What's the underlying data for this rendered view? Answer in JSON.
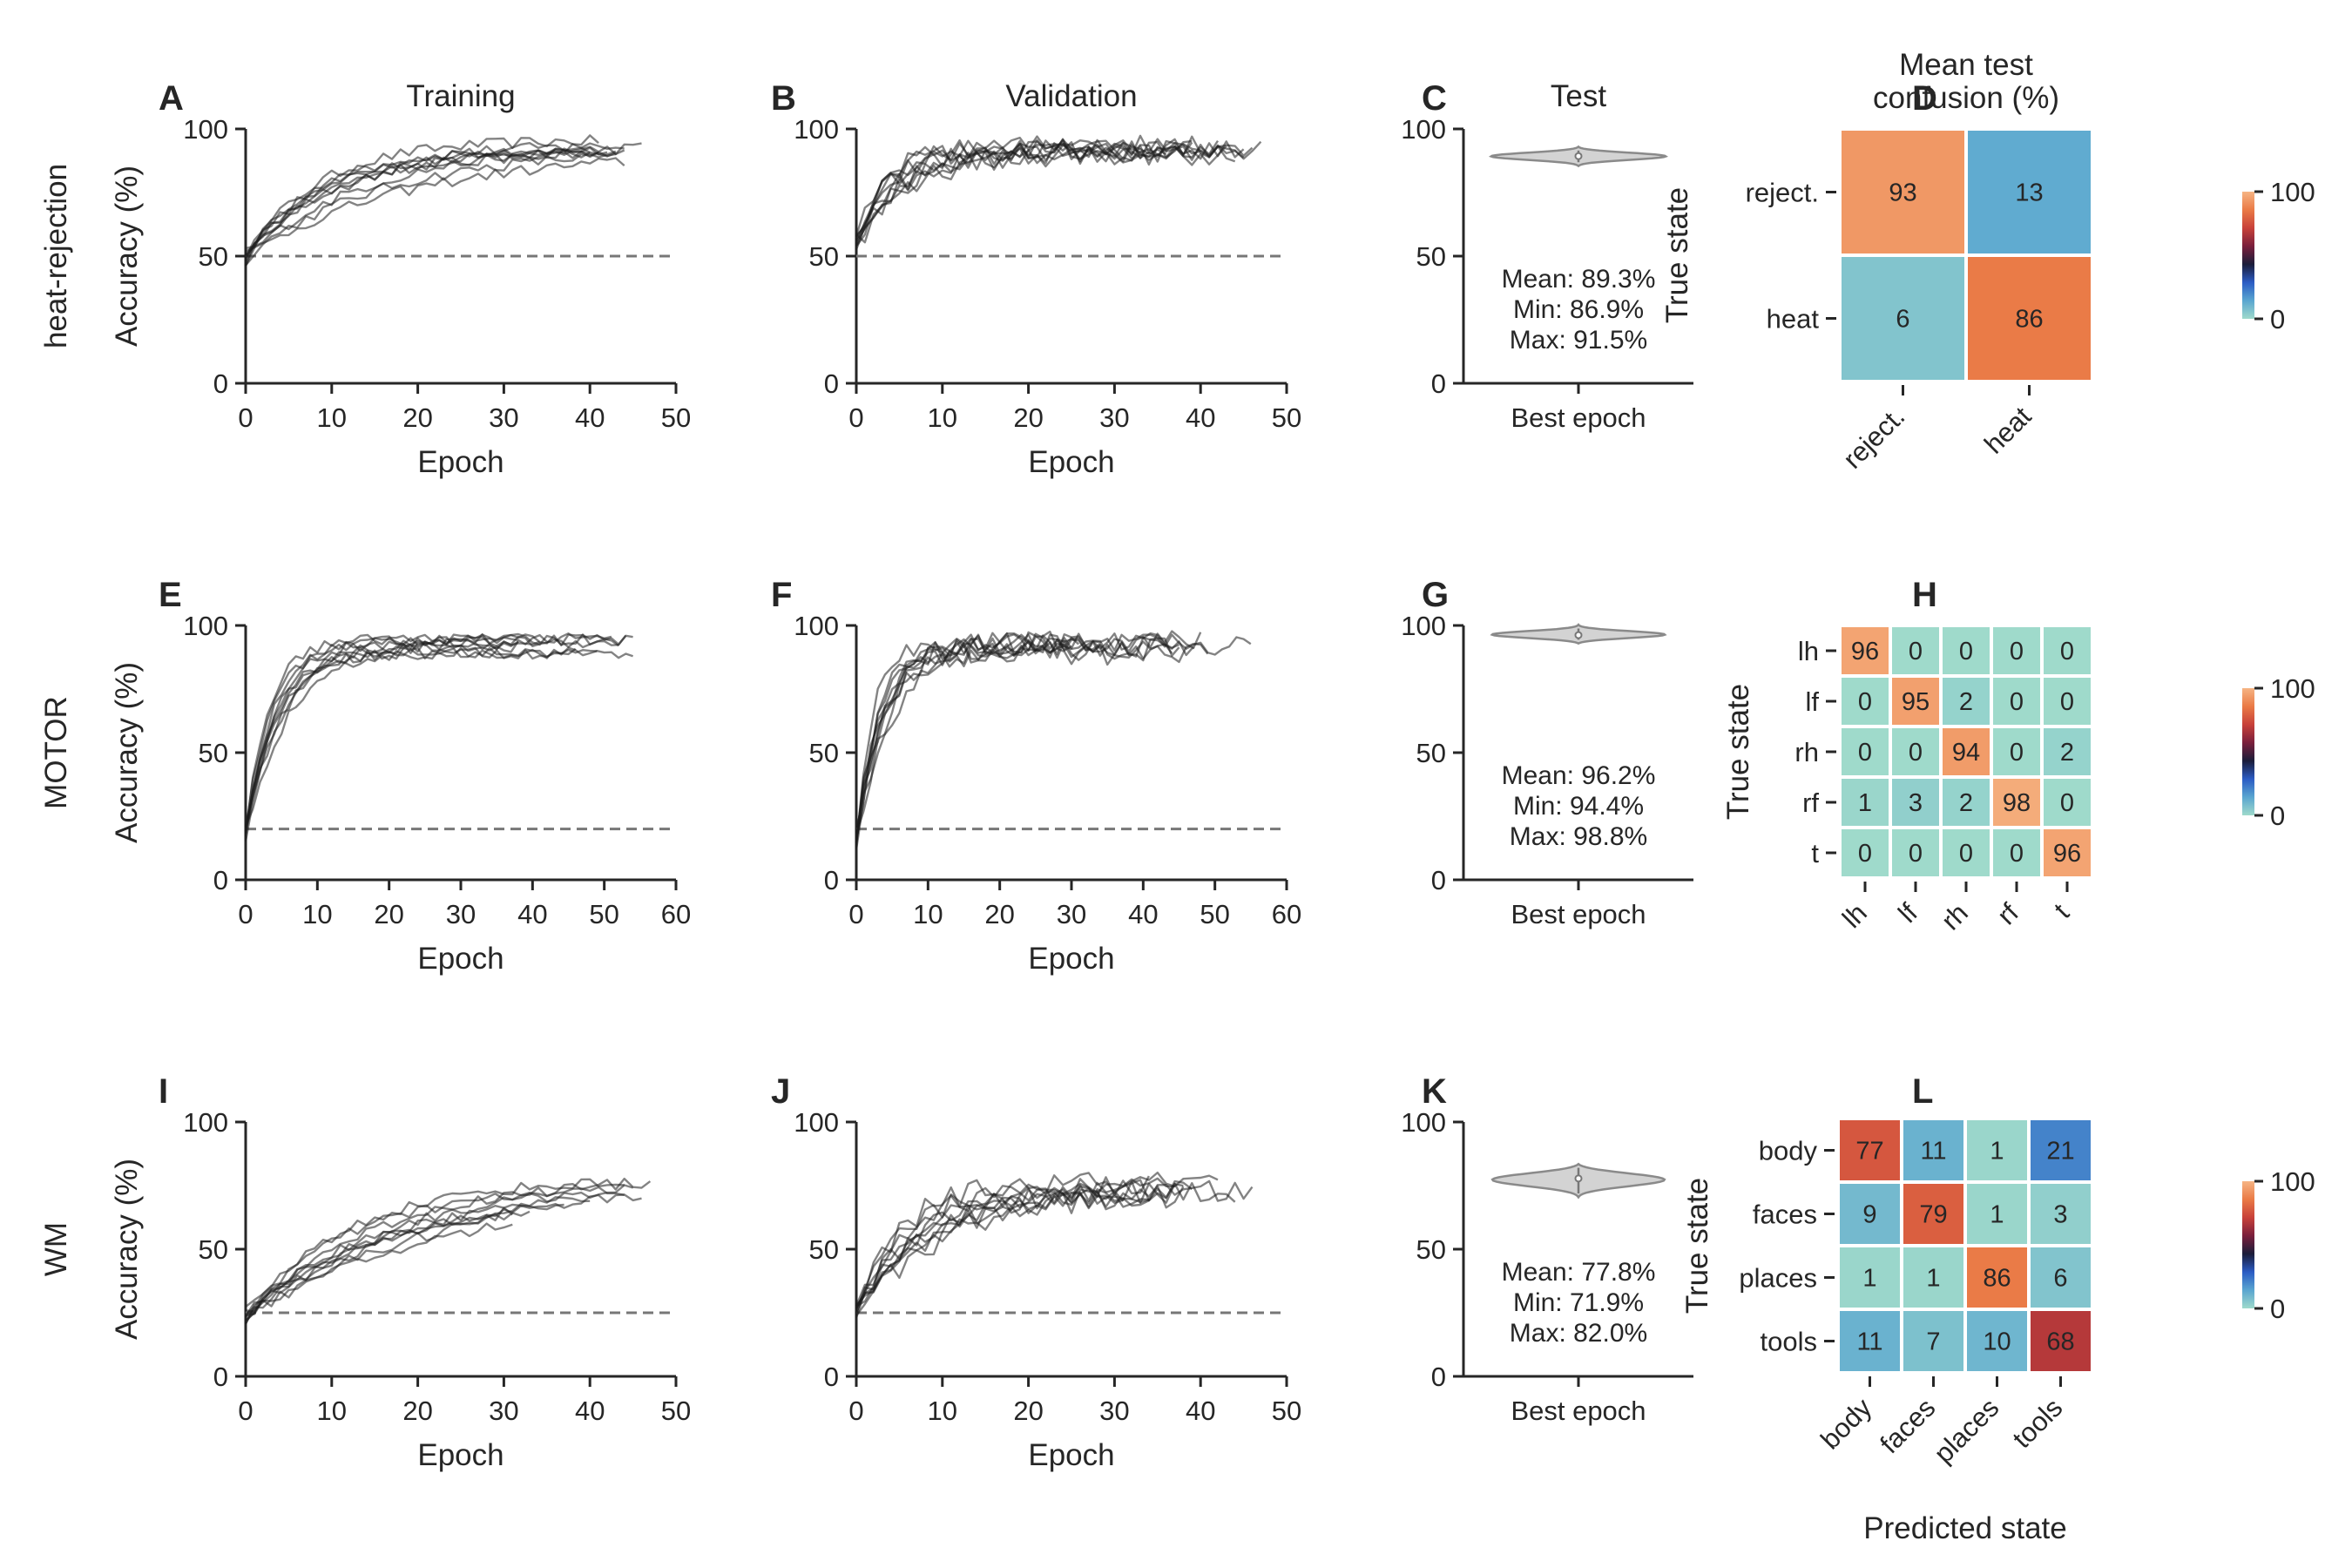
{
  "figure": {
    "column_titles": [
      "Training",
      "Validation",
      "Test",
      "Mean test\nconfusion (%)"
    ],
    "row_labels": [
      "heat-rejection",
      "MOTOR",
      "WM"
    ],
    "colorbar_ticks": [
      "100",
      "0"
    ],
    "colors": {
      "cmap": [
        "#9fdacb",
        "#5aa6d0",
        "#2b5cc4",
        "#1b1d3a",
        "#7a1f3c",
        "#c8413a",
        "#ea7a46",
        "#f6b483"
      ],
      "line": "#1e1e1e",
      "chance": "#777777",
      "violin_fill": "#d3d3d3"
    }
  },
  "chart_data": [
    {
      "panel": "A",
      "type": "line",
      "title": "Training",
      "row": "heat-rejection",
      "xlabel": "Epoch",
      "ylabel": "Accuracy (%)",
      "xlim": [
        0,
        50
      ],
      "ylim": [
        0,
        100
      ],
      "xticks": [
        0,
        10,
        20,
        30,
        40,
        50
      ],
      "yticks": [
        0,
        50,
        100
      ],
      "chance_level": 50,
      "n_runs": 10,
      "runs_approx": {
        "start": 50,
        "end": 93,
        "rate": 0.09,
        "epochs": [
          40,
          47
        ]
      }
    },
    {
      "panel": "B",
      "type": "line",
      "title": "Validation",
      "row": "heat-rejection",
      "xlabel": "Epoch",
      "ylabel": "",
      "xlim": [
        0,
        50
      ],
      "ylim": [
        0,
        100
      ],
      "xticks": [
        0,
        10,
        20,
        30,
        40,
        50
      ],
      "yticks": [
        0,
        50,
        100
      ],
      "chance_level": 50,
      "n_runs": 10,
      "runs_approx": {
        "start": 55,
        "end": 93,
        "rate": 0.22,
        "epochs": [
          33,
          47
        ]
      }
    },
    {
      "panel": "C",
      "type": "violin",
      "title": "Test",
      "row": "heat-rejection",
      "xlabel": "Best epoch",
      "ylim": [
        0,
        100
      ],
      "yticks": [
        0,
        50,
        100
      ],
      "values_summary": {
        "mean": 89.3,
        "min": 86.9,
        "max": 91.5
      },
      "stats_text": [
        "Mean: 89.3%",
        "Min: 86.9%",
        "Max: 91.5%"
      ]
    },
    {
      "panel": "D",
      "type": "heatmap",
      "title": "Mean test\nconfusion (%)",
      "row": "heat-rejection",
      "ylabel": "True state",
      "xlabel": "",
      "labels": [
        "reject.",
        "heat"
      ],
      "values": [
        [
          93,
          13
        ],
        [
          6,
          86
        ]
      ],
      "vmin": 0,
      "vmax": 100
    },
    {
      "panel": "E",
      "type": "line",
      "title": "",
      "row": "MOTOR",
      "xlabel": "Epoch",
      "ylabel": "Accuracy (%)",
      "xlim": [
        0,
        60
      ],
      "ylim": [
        0,
        100
      ],
      "xticks": [
        0,
        10,
        20,
        30,
        40,
        50,
        60
      ],
      "yticks": [
        0,
        50,
        100
      ],
      "chance_level": 20,
      "n_runs": 10,
      "runs_approx": {
        "start": 18,
        "end": 92,
        "rate": 0.22,
        "epochs": [
          30,
          56
        ]
      }
    },
    {
      "panel": "F",
      "type": "line",
      "title": "",
      "row": "MOTOR",
      "xlabel": "Epoch",
      "ylabel": "",
      "xlim": [
        0,
        60
      ],
      "ylim": [
        0,
        100
      ],
      "xticks": [
        0,
        10,
        20,
        30,
        40,
        50,
        60
      ],
      "yticks": [
        0,
        50,
        100
      ],
      "chance_level": 20,
      "n_runs": 10,
      "runs_approx": {
        "start": 15,
        "end": 91,
        "rate": 0.35,
        "epochs": [
          30,
          56
        ]
      }
    },
    {
      "panel": "G",
      "type": "violin",
      "title": "",
      "row": "MOTOR",
      "xlabel": "Best epoch",
      "ylim": [
        0,
        100
      ],
      "yticks": [
        0,
        50,
        100
      ],
      "values_summary": {
        "mean": 96.2,
        "min": 94.4,
        "max": 98.8
      },
      "stats_text": [
        "Mean: 96.2%",
        "Min: 94.4%",
        "Max: 98.8%"
      ]
    },
    {
      "panel": "H",
      "type": "heatmap",
      "title": "",
      "row": "MOTOR",
      "ylabel": "True state",
      "xlabel": "",
      "labels": [
        "lh",
        "lf",
        "rh",
        "rf",
        "t"
      ],
      "values": [
        [
          96,
          0,
          0,
          0,
          0
        ],
        [
          0,
          95,
          2,
          0,
          0
        ],
        [
          0,
          0,
          94,
          0,
          2
        ],
        [
          1,
          3,
          2,
          98,
          0
        ],
        [
          0,
          0,
          0,
          0,
          96
        ]
      ],
      "vmin": 0,
      "vmax": 100
    },
    {
      "panel": "I",
      "type": "line",
      "title": "",
      "row": "WM",
      "xlabel": "Epoch",
      "ylabel": "Accuracy (%)",
      "xlim": [
        0,
        50
      ],
      "ylim": [
        0,
        100
      ],
      "xticks": [
        0,
        10,
        20,
        30,
        40,
        50
      ],
      "yticks": [
        0,
        50,
        100
      ],
      "chance_level": 25,
      "n_runs": 10,
      "runs_approx": {
        "start": 24,
        "end": 76,
        "rate": 0.06,
        "epochs": [
          30,
          47
        ]
      }
    },
    {
      "panel": "J",
      "type": "line",
      "title": "",
      "row": "WM",
      "xlabel": "Epoch",
      "ylabel": "",
      "xlim": [
        0,
        50
      ],
      "ylim": [
        0,
        100
      ],
      "xticks": [
        0,
        10,
        20,
        30,
        40,
        50
      ],
      "yticks": [
        0,
        50,
        100
      ],
      "chance_level": 25,
      "n_runs": 10,
      "runs_approx": {
        "start": 25,
        "end": 74,
        "rate": 0.14,
        "epochs": [
          30,
          47
        ]
      }
    },
    {
      "panel": "K",
      "type": "violin",
      "title": "",
      "row": "WM",
      "xlabel": "Best epoch",
      "ylim": [
        0,
        100
      ],
      "yticks": [
        0,
        50,
        100
      ],
      "values_summary": {
        "mean": 77.8,
        "min": 71.9,
        "max": 82.0
      },
      "stats_text": [
        "Mean: 77.8%",
        "Min: 71.9%",
        "Max: 82.0%"
      ]
    },
    {
      "panel": "L",
      "type": "heatmap",
      "title": "",
      "row": "WM",
      "ylabel": "True state",
      "xlabel": "Predicted state",
      "labels": [
        "body",
        "faces",
        "places",
        "tools"
      ],
      "values": [
        [
          77,
          11,
          1,
          21
        ],
        [
          9,
          79,
          1,
          3
        ],
        [
          1,
          1,
          86,
          6
        ],
        [
          11,
          7,
          10,
          68
        ]
      ],
      "vmin": 0,
      "vmax": 100
    }
  ]
}
